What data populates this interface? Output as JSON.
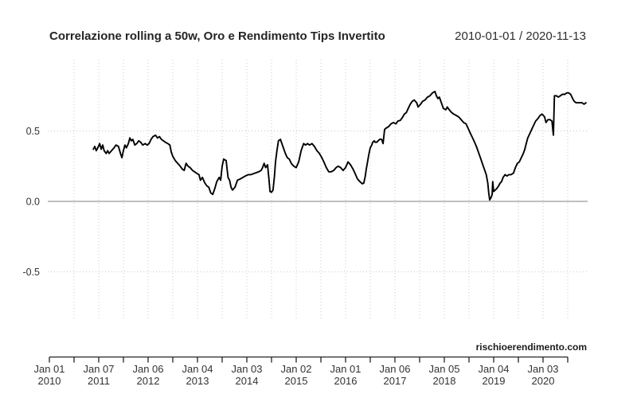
{
  "header": {
    "title": "Correlazione rolling a 50w, Oro e Rendimento Tips Invertito",
    "date_range": "2010-01-01 / 2020-11-13"
  },
  "watermark": "rischioerendimento.com",
  "colors": {
    "background": "#ffffff",
    "line": "#000000",
    "zero_line": "#9a9a9a",
    "grid": "#c9c9c9",
    "axis": "#222222",
    "text": "#333333"
  },
  "chart_data": {
    "type": "line",
    "title": "Correlazione rolling a 50w, Oro e Rendimento Tips Invertito",
    "period_label": "2010-01-01 / 2020-11-13",
    "xlabel": "",
    "ylabel": "",
    "ylim": [
      -1,
      1
    ],
    "x_range_years": [
      2010.0,
      2020.87
    ],
    "x_axis_end_t": 2020.5,
    "grid": {
      "vertical": "semiannual-dotted",
      "horizontal_dotted_at": [
        0.5,
        -0.5
      ],
      "solid_zero_line": true
    },
    "legend": "none",
    "y_ticks": [
      {
        "value": 0.5,
        "label": "0.5"
      },
      {
        "value": 0.0,
        "label": "0.0"
      },
      {
        "value": -0.5,
        "label": "-0.5"
      }
    ],
    "x_major_ticks": [
      {
        "t": 2010.0,
        "line1": "Jan 01",
        "line2": "2010"
      },
      {
        "t": 2011.0,
        "line1": "Jan 07",
        "line2": "2011"
      },
      {
        "t": 2012.0,
        "line1": "Jan 06",
        "line2": "2012"
      },
      {
        "t": 2013.0,
        "line1": "Jan 04",
        "line2": "2013"
      },
      {
        "t": 2014.0,
        "line1": "Jan 03",
        "line2": "2014"
      },
      {
        "t": 2015.0,
        "line1": "Jan 02",
        "line2": "2015"
      },
      {
        "t": 2016.0,
        "line1": "Jan 01",
        "line2": "2016"
      },
      {
        "t": 2017.0,
        "line1": "Jan 06",
        "line2": "2017"
      },
      {
        "t": 2018.0,
        "line1": "Jan 05",
        "line2": "2018"
      },
      {
        "t": 2019.0,
        "line1": "Jan 04",
        "line2": "2019"
      },
      {
        "t": 2020.0,
        "line1": "Jan 03",
        "line2": "2020"
      }
    ],
    "x_minor_tick_interval_years": 0.5,
    "series": [
      {
        "name": "Correlazione rolling a 50w, Oro e Rendimento Tips Invertito",
        "color": "#000000",
        "points": [
          [
            2010.89,
            0.37
          ],
          [
            2010.92,
            0.39
          ],
          [
            2010.95,
            0.36
          ],
          [
            2010.98,
            0.38
          ],
          [
            2011.02,
            0.41
          ],
          [
            2011.05,
            0.37
          ],
          [
            2011.08,
            0.4
          ],
          [
            2011.11,
            0.36
          ],
          [
            2011.15,
            0.34
          ],
          [
            2011.18,
            0.36
          ],
          [
            2011.21,
            0.34
          ],
          [
            2011.26,
            0.36
          ],
          [
            2011.31,
            0.38
          ],
          [
            2011.35,
            0.4
          ],
          [
            2011.4,
            0.39
          ],
          [
            2011.44,
            0.34
          ],
          [
            2011.47,
            0.31
          ],
          [
            2011.5,
            0.36
          ],
          [
            2011.53,
            0.4
          ],
          [
            2011.56,
            0.38
          ],
          [
            2011.6,
            0.41
          ],
          [
            2011.63,
            0.45
          ],
          [
            2011.66,
            0.43
          ],
          [
            2011.69,
            0.44
          ],
          [
            2011.73,
            0.4
          ],
          [
            2011.77,
            0.41
          ],
          [
            2011.81,
            0.43
          ],
          [
            2011.85,
            0.42
          ],
          [
            2011.89,
            0.4
          ],
          [
            2011.94,
            0.41
          ],
          [
            2011.98,
            0.4
          ],
          [
            2012.02,
            0.41
          ],
          [
            2012.06,
            0.44
          ],
          [
            2012.1,
            0.46
          ],
          [
            2012.15,
            0.47
          ],
          [
            2012.19,
            0.45
          ],
          [
            2012.23,
            0.46
          ],
          [
            2012.27,
            0.44
          ],
          [
            2012.31,
            0.43
          ],
          [
            2012.35,
            0.42
          ],
          [
            2012.4,
            0.41
          ],
          [
            2012.44,
            0.4
          ],
          [
            2012.47,
            0.35
          ],
          [
            2012.5,
            0.32
          ],
          [
            2012.55,
            0.29
          ],
          [
            2012.6,
            0.27
          ],
          [
            2012.65,
            0.25
          ],
          [
            2012.69,
            0.23
          ],
          [
            2012.73,
            0.22
          ],
          [
            2012.77,
            0.27
          ],
          [
            2012.81,
            0.25
          ],
          [
            2012.85,
            0.24
          ],
          [
            2012.9,
            0.22
          ],
          [
            2012.94,
            0.21
          ],
          [
            2012.98,
            0.2
          ],
          [
            2013.03,
            0.19
          ],
          [
            2013.06,
            0.15
          ],
          [
            2013.1,
            0.17
          ],
          [
            2013.15,
            0.13
          ],
          [
            2013.19,
            0.11
          ],
          [
            2013.23,
            0.1
          ],
          [
            2013.27,
            0.06
          ],
          [
            2013.31,
            0.05
          ],
          [
            2013.35,
            0.09
          ],
          [
            2013.39,
            0.14
          ],
          [
            2013.44,
            0.17
          ],
          [
            2013.47,
            0.15
          ],
          [
            2013.5,
            0.25
          ],
          [
            2013.53,
            0.3
          ],
          [
            2013.58,
            0.29
          ],
          [
            2013.62,
            0.17
          ],
          [
            2013.65,
            0.15
          ],
          [
            2013.68,
            0.1
          ],
          [
            2013.71,
            0.08
          ],
          [
            2013.76,
            0.1
          ],
          [
            2013.81,
            0.15
          ],
          [
            2013.87,
            0.16
          ],
          [
            2013.92,
            0.17
          ],
          [
            2013.97,
            0.18
          ],
          [
            2014.03,
            0.19
          ],
          [
            2014.08,
            0.19
          ],
          [
            2014.16,
            0.2
          ],
          [
            2014.24,
            0.21
          ],
          [
            2014.29,
            0.22
          ],
          [
            2014.32,
            0.24
          ],
          [
            2014.35,
            0.27
          ],
          [
            2014.38,
            0.24
          ],
          [
            2014.42,
            0.26
          ],
          [
            2014.45,
            0.15
          ],
          [
            2014.47,
            0.07
          ],
          [
            2014.5,
            0.065
          ],
          [
            2014.53,
            0.08
          ],
          [
            2014.56,
            0.18
          ],
          [
            2014.58,
            0.28
          ],
          [
            2014.61,
            0.36
          ],
          [
            2014.64,
            0.43
          ],
          [
            2014.68,
            0.44
          ],
          [
            2014.71,
            0.41
          ],
          [
            2014.74,
            0.38
          ],
          [
            2014.78,
            0.34
          ],
          [
            2014.82,
            0.31
          ],
          [
            2014.86,
            0.3
          ],
          [
            2014.9,
            0.27
          ],
          [
            2014.95,
            0.25
          ],
          [
            2015.0,
            0.24
          ],
          [
            2015.05,
            0.28
          ],
          [
            2015.1,
            0.36
          ],
          [
            2015.15,
            0.41
          ],
          [
            2015.19,
            0.4
          ],
          [
            2015.23,
            0.41
          ],
          [
            2015.27,
            0.4
          ],
          [
            2015.32,
            0.41
          ],
          [
            2015.37,
            0.39
          ],
          [
            2015.42,
            0.36
          ],
          [
            2015.47,
            0.34
          ],
          [
            2015.52,
            0.31
          ],
          [
            2015.56,
            0.28
          ],
          [
            2015.61,
            0.24
          ],
          [
            2015.66,
            0.21
          ],
          [
            2015.71,
            0.21
          ],
          [
            2015.76,
            0.22
          ],
          [
            2015.81,
            0.24
          ],
          [
            2015.85,
            0.25
          ],
          [
            2015.9,
            0.24
          ],
          [
            2015.95,
            0.22
          ],
          [
            2016.0,
            0.24
          ],
          [
            2016.05,
            0.28
          ],
          [
            2016.1,
            0.26
          ],
          [
            2016.15,
            0.23
          ],
          [
            2016.19,
            0.2
          ],
          [
            2016.24,
            0.16
          ],
          [
            2016.29,
            0.14
          ],
          [
            2016.34,
            0.125
          ],
          [
            2016.37,
            0.13
          ],
          [
            2016.4,
            0.18
          ],
          [
            2016.42,
            0.23
          ],
          [
            2016.44,
            0.27
          ],
          [
            2016.47,
            0.33
          ],
          [
            2016.5,
            0.38
          ],
          [
            2016.53,
            0.4
          ],
          [
            2016.55,
            0.42
          ],
          [
            2016.58,
            0.43
          ],
          [
            2016.6,
            0.42
          ],
          [
            2016.63,
            0.42
          ],
          [
            2016.66,
            0.43
          ],
          [
            2016.69,
            0.44
          ],
          [
            2016.73,
            0.44
          ],
          [
            2016.76,
            0.41
          ],
          [
            2016.79,
            0.51
          ],
          [
            2016.82,
            0.52
          ],
          [
            2016.87,
            0.53
          ],
          [
            2016.92,
            0.55
          ],
          [
            2016.97,
            0.56
          ],
          [
            2017.02,
            0.55
          ],
          [
            2017.06,
            0.57
          ],
          [
            2017.11,
            0.575
          ],
          [
            2017.16,
            0.6
          ],
          [
            2017.19,
            0.62
          ],
          [
            2017.23,
            0.63
          ],
          [
            2017.27,
            0.66
          ],
          [
            2017.31,
            0.69
          ],
          [
            2017.35,
            0.71
          ],
          [
            2017.39,
            0.72
          ],
          [
            2017.44,
            0.7
          ],
          [
            2017.47,
            0.67
          ],
          [
            2017.52,
            0.69
          ],
          [
            2017.56,
            0.71
          ],
          [
            2017.61,
            0.72
          ],
          [
            2017.66,
            0.74
          ],
          [
            2017.71,
            0.75
          ],
          [
            2017.76,
            0.77
          ],
          [
            2017.81,
            0.78
          ],
          [
            2017.84,
            0.75
          ],
          [
            2017.87,
            0.73
          ],
          [
            2017.9,
            0.74
          ],
          [
            2017.94,
            0.7
          ],
          [
            2017.98,
            0.66
          ],
          [
            2018.03,
            0.65
          ],
          [
            2018.06,
            0.67
          ],
          [
            2018.1,
            0.65
          ],
          [
            2018.15,
            0.63
          ],
          [
            2018.19,
            0.62
          ],
          [
            2018.24,
            0.61
          ],
          [
            2018.29,
            0.6
          ],
          [
            2018.34,
            0.58
          ],
          [
            2018.39,
            0.56
          ],
          [
            2018.44,
            0.55
          ],
          [
            2018.48,
            0.52
          ],
          [
            2018.52,
            0.49
          ],
          [
            2018.56,
            0.46
          ],
          [
            2018.6,
            0.43
          ],
          [
            2018.65,
            0.39
          ],
          [
            2018.69,
            0.35
          ],
          [
            2018.73,
            0.31
          ],
          [
            2018.77,
            0.27
          ],
          [
            2018.81,
            0.23
          ],
          [
            2018.85,
            0.19
          ],
          [
            2018.88,
            0.13
          ],
          [
            2018.9,
            0.06
          ],
          [
            2018.92,
            0.01
          ],
          [
            2018.95,
            0.03
          ],
          [
            2018.97,
            0.05
          ],
          [
            2018.98,
            0.14
          ],
          [
            2019.0,
            0.07
          ],
          [
            2019.03,
            0.08
          ],
          [
            2019.06,
            0.09
          ],
          [
            2019.1,
            0.11
          ],
          [
            2019.13,
            0.13
          ],
          [
            2019.16,
            0.14
          ],
          [
            2019.19,
            0.17
          ],
          [
            2019.23,
            0.19
          ],
          [
            2019.27,
            0.18
          ],
          [
            2019.31,
            0.19
          ],
          [
            2019.35,
            0.19
          ],
          [
            2019.4,
            0.2
          ],
          [
            2019.44,
            0.24
          ],
          [
            2019.48,
            0.27
          ],
          [
            2019.52,
            0.28
          ],
          [
            2019.56,
            0.31
          ],
          [
            2019.6,
            0.34
          ],
          [
            2019.63,
            0.37
          ],
          [
            2019.66,
            0.41
          ],
          [
            2019.69,
            0.45
          ],
          [
            2019.73,
            0.48
          ],
          [
            2019.77,
            0.51
          ],
          [
            2019.81,
            0.54
          ],
          [
            2019.85,
            0.57
          ],
          [
            2019.9,
            0.59
          ],
          [
            2019.94,
            0.61
          ],
          [
            2019.98,
            0.62
          ],
          [
            2020.03,
            0.6
          ],
          [
            2020.06,
            0.56
          ],
          [
            2020.1,
            0.58
          ],
          [
            2020.14,
            0.58
          ],
          [
            2020.18,
            0.57
          ],
          [
            2020.21,
            0.47
          ],
          [
            2020.23,
            0.75
          ],
          [
            2020.27,
            0.75
          ],
          [
            2020.31,
            0.74
          ],
          [
            2020.35,
            0.75
          ],
          [
            2020.39,
            0.76
          ],
          [
            2020.44,
            0.76
          ],
          [
            2020.48,
            0.77
          ],
          [
            2020.52,
            0.77
          ],
          [
            2020.56,
            0.76
          ],
          [
            2020.6,
            0.73
          ],
          [
            2020.63,
            0.71
          ],
          [
            2020.67,
            0.7
          ],
          [
            2020.71,
            0.7
          ],
          [
            2020.75,
            0.7
          ],
          [
            2020.79,
            0.7
          ],
          [
            2020.83,
            0.69
          ],
          [
            2020.87,
            0.7
          ]
        ]
      }
    ]
  }
}
